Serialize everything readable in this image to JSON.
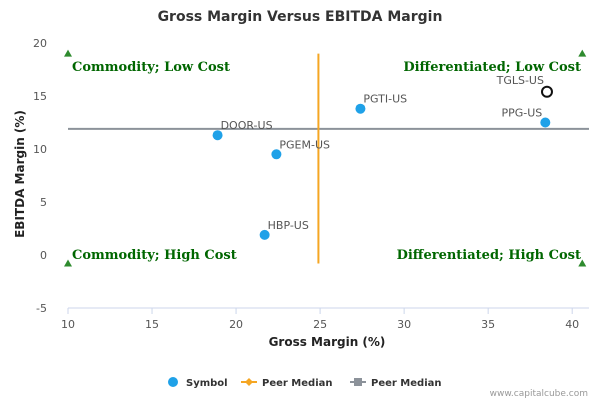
{
  "chart_data": {
    "type": "scatter",
    "title": "Gross Margin Versus EBITDA Margin",
    "xlabel": "Gross Margin (%)",
    "ylabel": "EBITDA Margin (%)",
    "xlim": [
      10,
      41
    ],
    "ylim": [
      -5,
      20
    ],
    "xticks": [
      "10",
      "15",
      "20",
      "25",
      "30",
      "35",
      "40"
    ],
    "yticks": [
      "-5",
      "0",
      "5",
      "10",
      "15",
      "20"
    ],
    "grid": false,
    "points": [
      {
        "label": "DOOR-US",
        "x": 18.9,
        "y": 11.3,
        "style": "filled"
      },
      {
        "label": "PGEM-US",
        "x": 22.4,
        "y": 9.5,
        "style": "filled"
      },
      {
        "label": "HBP-US",
        "x": 21.7,
        "y": 1.9,
        "style": "filled"
      },
      {
        "label": "PGTI-US",
        "x": 27.4,
        "y": 13.8,
        "style": "filled"
      },
      {
        "label": "PPG-US",
        "x": 38.4,
        "y": 12.5,
        "style": "filled"
      },
      {
        "label": "TGLS-US",
        "x": 38.5,
        "y": 15.4,
        "style": "hollow"
      }
    ],
    "peer_median_x": 24.9,
    "peer_median_y": 11.9,
    "quadrants": {
      "top_left": "Commodity; Low Cost",
      "top_right": "Differentiated; Low Cost",
      "bottom_left": "Commodity; High Cost",
      "bottom_right": "Differentiated; High Cost"
    },
    "legend": {
      "placement": "bottom-center",
      "items": [
        {
          "label": "Symbol",
          "marker": "circle",
          "color": "#1fa1e8"
        },
        {
          "label": "Peer Median",
          "marker": "diamond-line",
          "color": "#f5a623"
        },
        {
          "label": "Peer Median",
          "marker": "square-line",
          "color": "#8c929a"
        }
      ]
    },
    "colors": {
      "point": "#1fa1e8",
      "highlight_stroke": "#111111",
      "median_x_line": "#f5a623",
      "median_y_line": "#8c929a",
      "quadrant_text": "#006600",
      "triangle": "#2e8b2e",
      "axis": "#ccd6eb"
    }
  },
  "credit": "www.capitalcube.com"
}
